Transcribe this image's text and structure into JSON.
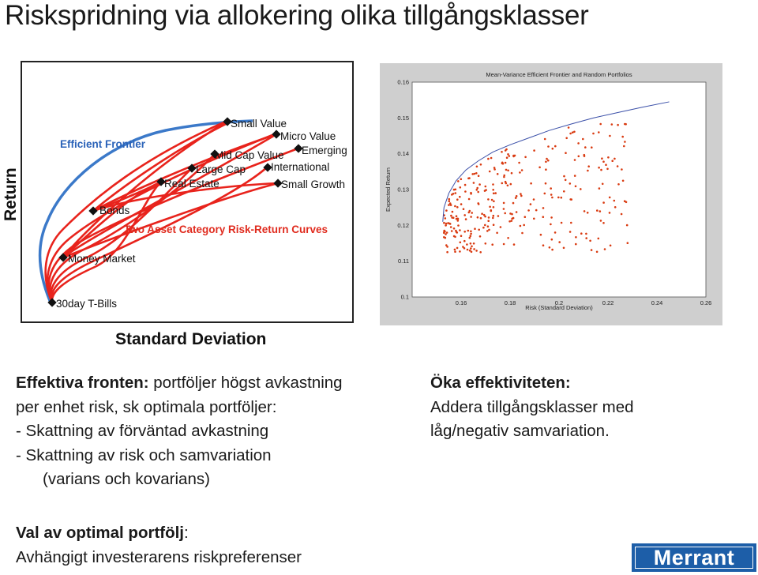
{
  "slide": {
    "title": "Riskspridning via allokering olika tillgångsklasser"
  },
  "left_chart": {
    "ylabel": "Return",
    "xlabel": "Standard Deviation",
    "labels": {
      "efficient_frontier": "Efficient Frontier",
      "small_value": "Small Value",
      "micro_value": "Micro Value",
      "emerging": "Emerging",
      "mid_cap_value": "Mid Cap Value",
      "large_cap": "Large Cap",
      "international": "International",
      "real_estate": "Real Estate",
      "small_growth": "Small Growth",
      "bonds": "Bonds",
      "two_asset": "Two Asset Category Risk-Return Curves",
      "money_market": "Money Market",
      "t_bills": "30day T-Bills"
    },
    "colors": {
      "frontier": "#3b79c9",
      "curves": "#e8231c",
      "label_blue": "#2a62b8",
      "label_red": "#e02b1e"
    }
  },
  "chart_data": {
    "type": "scatter",
    "title": "Mean-Variance Efficient Frontier and Random Portfolios",
    "xlabel": "Risk (Standard Deviation)",
    "ylabel": "Expected Return",
    "xlim": [
      0.14,
      0.26
    ],
    "ylim": [
      0.1,
      0.16
    ],
    "x_ticks": [
      "0.16",
      "0.18",
      "0.2",
      "0.22",
      "0.24",
      "0.26"
    ],
    "y_ticks": [
      "0.1",
      "0.11",
      "0.12",
      "0.13",
      "0.14",
      "0.15",
      "0.16"
    ],
    "frontier": {
      "x": [
        0.1525,
        0.153,
        0.155,
        0.158,
        0.162,
        0.167,
        0.173,
        0.18,
        0.188,
        0.196,
        0.205,
        0.214,
        0.224,
        0.234,
        0.245
      ],
      "y": [
        0.121,
        0.125,
        0.129,
        0.1325,
        0.1355,
        0.138,
        0.1405,
        0.1425,
        0.1445,
        0.1465,
        0.1483,
        0.15,
        0.1515,
        0.153,
        0.1545
      ]
    },
    "colors": {
      "points": "#d93a10",
      "frontier": "#3a4fa8",
      "plot_bg": "#ffffff",
      "frame_bg": "#cfcfcf"
    }
  },
  "left_text": {
    "line1_bold": "Effektiva fronten:",
    "line1_rest": " portföljer högst avkastning",
    "line2": "per enhet risk, sk optimala portföljer:",
    "line3": "-   Skattning av förväntad avkastning",
    "line4": "-   Skattning av risk och samvariation",
    "line5": "(varians och kovarians)"
  },
  "right_text": {
    "line1_bold": "Öka effektiviteten:",
    "line2": "Addera tillgångsklasser med",
    "line3": "låg/negativ samvariation."
  },
  "bottom_text": {
    "line1_bold": "Val av optimal portfölj",
    "line1_rest": ":",
    "line2": "Avhängigt investerarens riskpreferenser"
  },
  "logo": {
    "text": "Merrant"
  }
}
